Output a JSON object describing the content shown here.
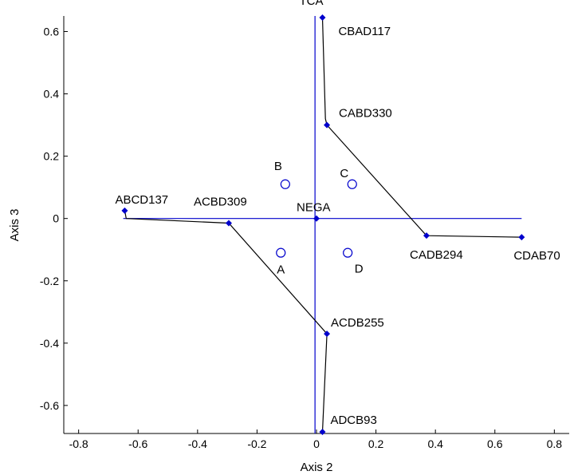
{
  "chart_data": {
    "type": "scatter",
    "title": "",
    "xlabel": "Axis 2",
    "ylabel": "Axis 3",
    "xlim": [
      -0.85,
      0.85
    ],
    "ylim": [
      -0.69,
      0.65
    ],
    "xticks": [
      -0.8,
      -0.6,
      -0.4,
      -0.2,
      0,
      0.2,
      0.4,
      0.6,
      0.8
    ],
    "xtick_labels": [
      "-0.8",
      "-0.6",
      "-0.4",
      "-0.2",
      "0",
      "0.2",
      "0.4",
      "0.6",
      "0.8"
    ],
    "yticks": [
      -0.6,
      -0.4,
      -0.2,
      0,
      0.2,
      0.4,
      0.6
    ],
    "ytick_labels": [
      "-0.6",
      "-0.4",
      "-0.2",
      "0",
      "0.2",
      "0.4",
      "0.6"
    ],
    "grid": false,
    "axis_lines": {
      "horizontal": {
        "x1": -0.65,
        "x2": 0.69,
        "y": 0.0
      },
      "vertical": {
        "x": -0.005,
        "y1": 0.65,
        "y2": -0.69
      }
    },
    "labeled_points": [
      {
        "name": "TCA",
        "x": 0.02,
        "y": 0.645
      },
      {
        "name": "CBAD117",
        "x": 0.02,
        "y": 0.645
      },
      {
        "name": "CABD330",
        "x": 0.035,
        "y": 0.3
      },
      {
        "name": "CADB294",
        "x": 0.37,
        "y": -0.055
      },
      {
        "name": "CDAB70",
        "x": 0.69,
        "y": -0.06
      },
      {
        "name": "NEGA",
        "x": 0.0,
        "y": 0.0
      },
      {
        "name": "ABCD137",
        "x": -0.645,
        "y": 0.025
      },
      {
        "name": "ACBD309",
        "x": -0.295,
        "y": -0.015
      },
      {
        "name": "ACDB255",
        "x": 0.035,
        "y": -0.37
      },
      {
        "name": "ADCB93",
        "x": 0.02,
        "y": -0.685
      }
    ],
    "path_lines": [
      [
        [
          0.02,
          0.645
        ],
        [
          0.03,
          0.32
        ],
        [
          0.035,
          0.3
        ],
        [
          0.37,
          -0.055
        ],
        [
          0.69,
          -0.06
        ]
      ],
      [
        [
          -0.645,
          0.025
        ],
        [
          -0.64,
          0.0
        ],
        [
          -0.295,
          -0.015
        ],
        [
          0.035,
          -0.37
        ],
        [
          0.02,
          -0.685
        ]
      ]
    ],
    "group_points": [
      {
        "name": "A",
        "x": -0.12,
        "y": -0.11
      },
      {
        "name": "B",
        "x": -0.105,
        "y": 0.11
      },
      {
        "name": "C",
        "x": 0.12,
        "y": 0.11
      },
      {
        "name": "D",
        "x": 0.105,
        "y": -0.11
      }
    ],
    "colors": {
      "axis_lines": "#0000cc",
      "markers": "#0000cc",
      "path": "#000000",
      "frame": "#000000"
    }
  }
}
